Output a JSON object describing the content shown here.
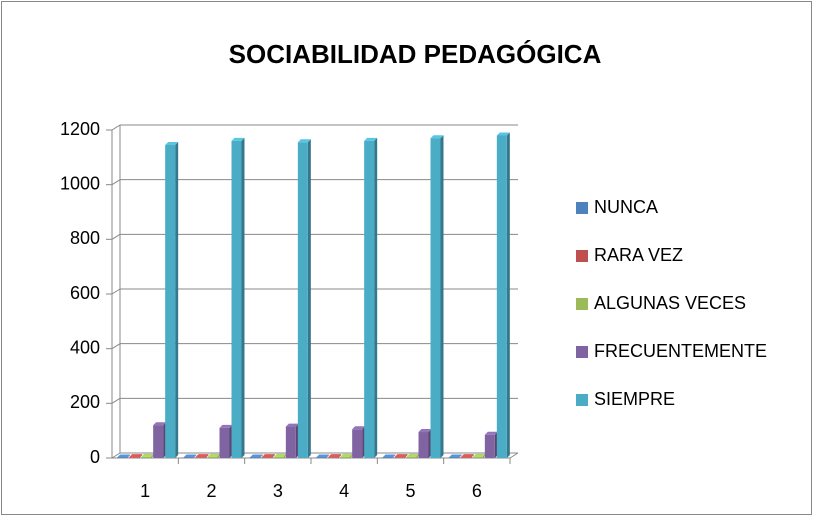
{
  "chart_data": {
    "type": "bar3d",
    "title": "SOCIABILIDAD PEDAGÓGICA",
    "categories": [
      "1",
      "2",
      "3",
      "4",
      "5",
      "6"
    ],
    "series": [
      {
        "name": "NUNCA",
        "color": "#4f81bd",
        "values": [
          2,
          2,
          2,
          2,
          2,
          2
        ]
      },
      {
        "name": "RARA VEZ",
        "color": "#c0504d",
        "values": [
          3,
          3,
          3,
          3,
          3,
          3
        ]
      },
      {
        "name": "ALGUNAS VECES",
        "color": "#9bbb59",
        "values": [
          4,
          4,
          4,
          4,
          4,
          4
        ]
      },
      {
        "name": "FRECUENTEMENTE",
        "color": "#8064a2",
        "values": [
          120,
          110,
          115,
          105,
          95,
          85
        ]
      },
      {
        "name": "SIEMPRE",
        "color": "#4bacc6",
        "values": [
          1145,
          1160,
          1155,
          1160,
          1170,
          1180
        ]
      }
    ],
    "ylim": [
      0,
      1200
    ],
    "yticks": [
      0,
      200,
      400,
      600,
      800,
      1000,
      1200
    ],
    "grid": true,
    "legend": "right"
  }
}
